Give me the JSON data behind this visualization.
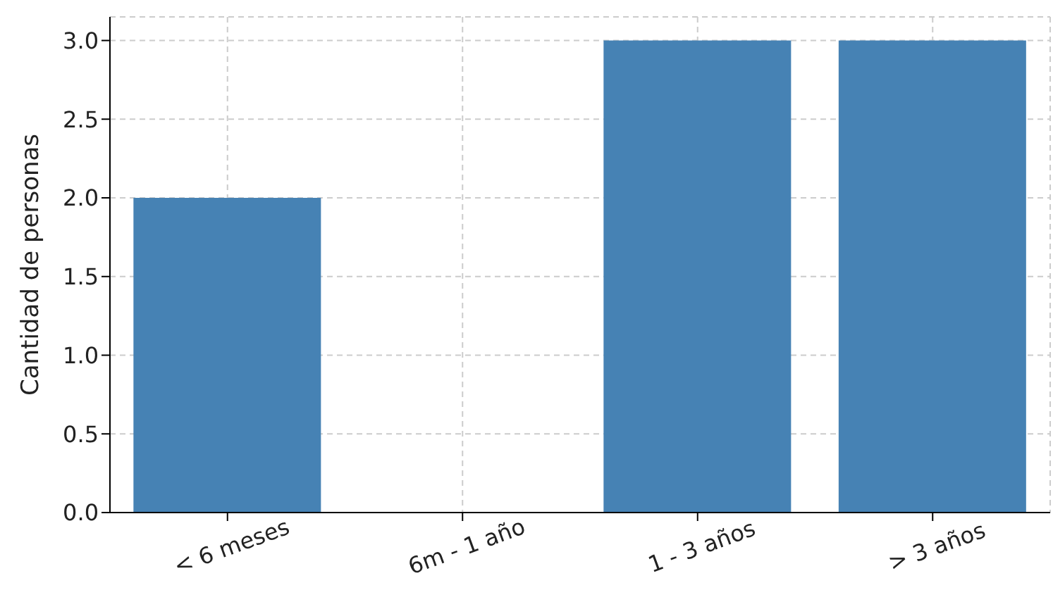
{
  "chart_data": {
    "type": "bar",
    "ylabel": "Cantidad de personas",
    "categories": [
      "< 6 meses",
      "6m - 1 año",
      "1 - 3 años",
      "> 3 años"
    ],
    "values": [
      2,
      0,
      3,
      3
    ],
    "color": "#4682b4",
    "ylim": [
      0,
      3.15
    ],
    "yticks": [
      {
        "value": 0,
        "label": "0.0"
      },
      {
        "value": 0.5,
        "label": "0.5"
      },
      {
        "value": 1,
        "label": "1.0"
      },
      {
        "value": 1.5,
        "label": "1.5"
      },
      {
        "value": 2,
        "label": "2.0"
      },
      {
        "value": 2.5,
        "label": "2.5"
      },
      {
        "value": 3,
        "label": "3.0"
      }
    ],
    "grid": true
  }
}
